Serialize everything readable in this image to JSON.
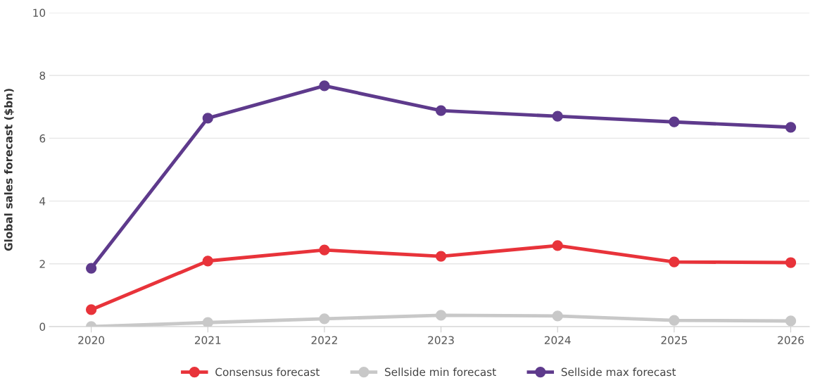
{
  "chart_data": {
    "type": "line",
    "ylabel": "Global sales forecast ($bn)",
    "categories": [
      "2020",
      "2021",
      "2022",
      "2023",
      "2024",
      "2025",
      "2026"
    ],
    "series": [
      {
        "name": "Consensus forecast",
        "color": "#e8333a",
        "values": [
          0.54,
          2.09,
          2.44,
          2.24,
          2.58,
          2.06,
          2.04
        ]
      },
      {
        "name": "Sellside min forecast",
        "color": "#c8c8c8",
        "values": [
          0.0,
          0.13,
          0.25,
          0.36,
          0.34,
          0.2,
          0.18
        ]
      },
      {
        "name": "Sellside max forecast",
        "color": "#5e3a8c",
        "values": [
          1.86,
          6.64,
          7.67,
          6.88,
          6.7,
          6.52,
          6.35
        ]
      }
    ],
    "ylim": [
      0,
      10
    ],
    "yticks": [
      0,
      2,
      4,
      6,
      8,
      10
    ],
    "grid": "y",
    "legend": "bottom",
    "marker": "circle",
    "line_style": "solid"
  }
}
